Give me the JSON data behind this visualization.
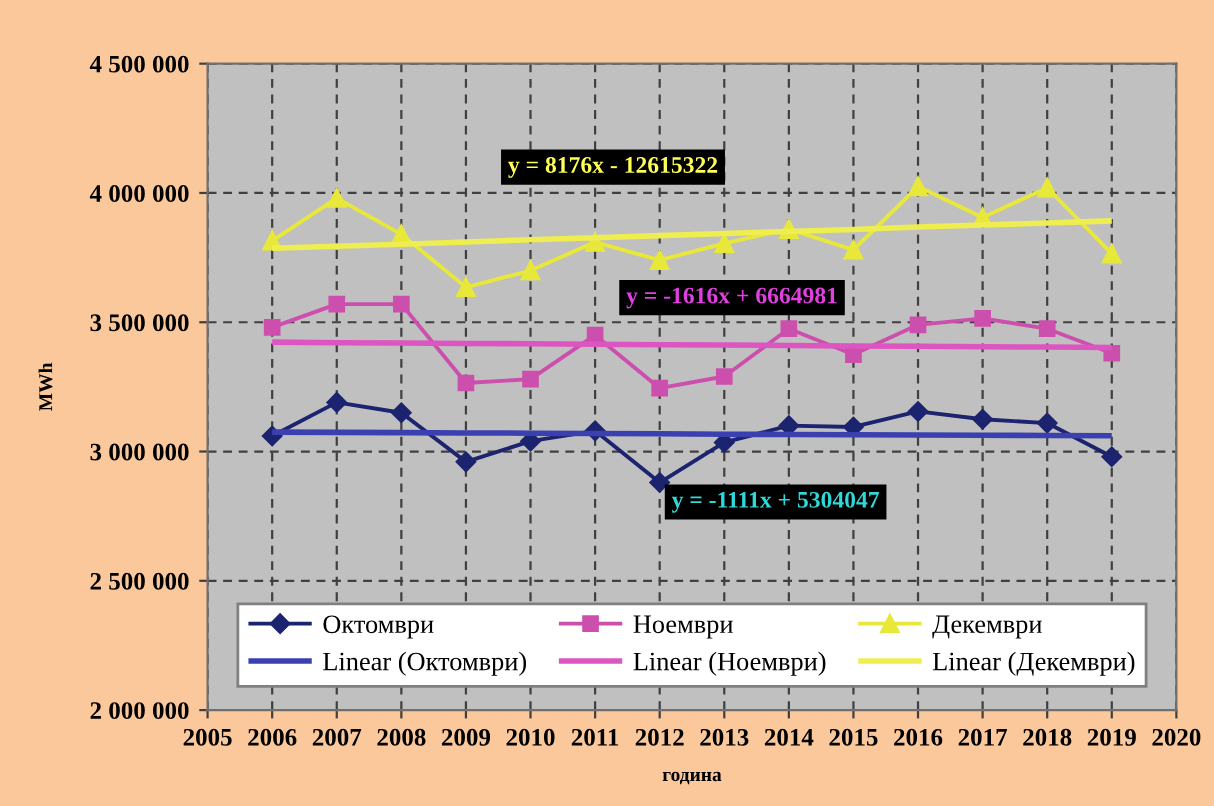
{
  "chart_data": {
    "type": "line",
    "xlabel": "година",
    "ylabel": "MWh",
    "xlim": [
      2005,
      2020
    ],
    "xticks": [
      2005,
      2006,
      2007,
      2008,
      2009,
      2010,
      2011,
      2012,
      2013,
      2014,
      2015,
      2016,
      2017,
      2018,
      2019,
      2020
    ],
    "ylim": [
      2000000,
      4500000
    ],
    "yticks": [
      {
        "value": 2000000,
        "label": "2 000 000"
      },
      {
        "value": 2500000,
        "label": "2 500 000"
      },
      {
        "value": 3000000,
        "label": "3 000 000"
      },
      {
        "value": 3500000,
        "label": "3 500 000"
      },
      {
        "value": 4000000,
        "label": "4 000 000"
      },
      {
        "value": 4500000,
        "label": "4 500 000"
      }
    ],
    "grid": true,
    "legend": "bottom",
    "line_style": "solid",
    "x": [
      2006,
      2007,
      2008,
      2009,
      2010,
      2011,
      2012,
      2013,
      2014,
      2015,
      2016,
      2017,
      2018,
      2019
    ],
    "series": [
      {
        "name": "Октомври",
        "color": "#1c2470",
        "marker": "diamond",
        "values": [
          3060000,
          3190000,
          3150000,
          2960000,
          3040000,
          3080000,
          2880000,
          3035000,
          3100000,
          3095000,
          3155000,
          3125000,
          3110000,
          2980000
        ]
      },
      {
        "name": "Ноември",
        "color": "#cc4fae",
        "marker": "square",
        "values": [
          3480000,
          3570000,
          3570000,
          3265000,
          3280000,
          3450000,
          3245000,
          3290000,
          3475000,
          3375000,
          3490000,
          3515000,
          3475000,
          3380000
        ]
      },
      {
        "name": "Декември",
        "color": "#e8e83a",
        "marker": "triangle",
        "values": [
          3815000,
          3980000,
          3840000,
          3635000,
          3700000,
          3810000,
          3740000,
          3805000,
          3860000,
          3780000,
          4025000,
          3905000,
          4020000,
          3765000
        ]
      },
      {
        "name": "Linear (Октомври)",
        "type": "line",
        "color": "#3a40b0",
        "marker": "none",
        "values": [
          3075000,
          3074000,
          3073000,
          3072000,
          3071000,
          3070000,
          3069000,
          3067000,
          3066000,
          3065000,
          3064000,
          3063000,
          3062000,
          3061000
        ]
      },
      {
        "name": "Linear (Ноември)",
        "type": "line",
        "color": "#dd55c0",
        "marker": "none",
        "values": [
          3423000,
          3421000,
          3420000,
          3418000,
          3417000,
          3415000,
          3413000,
          3412000,
          3410000,
          3408000,
          3407000,
          3405000,
          3404000,
          3402000
        ]
      },
      {
        "name": "Linear (Декември)",
        "type": "line",
        "color": "#eeee50",
        "marker": "none",
        "values": [
          3786000,
          3794000,
          3802000,
          3810000,
          3819000,
          3827000,
          3835000,
          3843000,
          3851000,
          3859000,
          3868000,
          3876000,
          3884000,
          3892000
        ]
      }
    ],
    "annotations": [
      "y = 8176x - 12615322",
      "y = -1616x + 6664981",
      "y = -1111x + 5304047"
    ]
  }
}
